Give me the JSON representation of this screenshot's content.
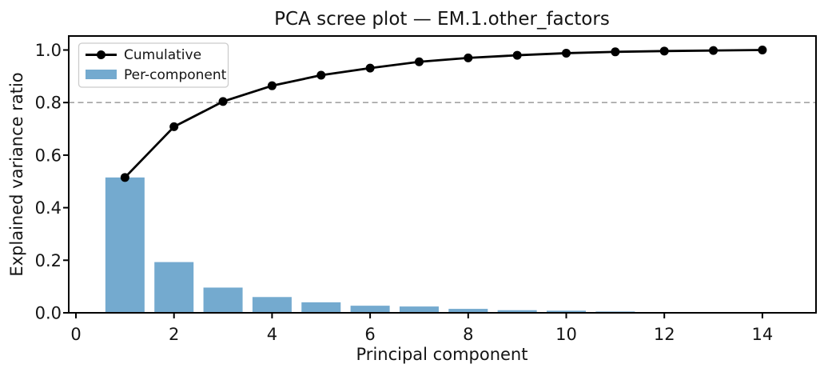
{
  "chart_data": {
    "type": "bar",
    "title": "PCA scree plot — EM.1.other_factors",
    "xlabel": "Principal component",
    "ylabel": "Explained variance ratio",
    "components": [
      1,
      2,
      3,
      4,
      5,
      6,
      7,
      8,
      9,
      10,
      11,
      12,
      13,
      14
    ],
    "series": [
      {
        "name": "Cumulative",
        "type": "line",
        "color": "#000000",
        "values": [
          0.515,
          0.708,
          0.804,
          0.864,
          0.904,
          0.931,
          0.955,
          0.97,
          0.98,
          0.988,
          0.993,
          0.996,
          0.998,
          1.0
        ]
      },
      {
        "name": "Per-component",
        "type": "bar",
        "color": "#74aacf",
        "values": [
          0.515,
          0.193,
          0.096,
          0.06,
          0.04,
          0.027,
          0.024,
          0.015,
          0.01,
          0.008,
          0.005,
          0.003,
          0.002,
          0.002
        ]
      }
    ],
    "threshold_line": {
      "value": 0.8,
      "style": "dashed",
      "color": "#a3a3a3"
    },
    "xticks": [
      0,
      2,
      4,
      6,
      8,
      10,
      12,
      14
    ],
    "yticks": [
      0.0,
      0.2,
      0.4,
      0.6,
      0.8,
      1.0
    ],
    "xlim": [
      -0.2,
      15.1
    ],
    "ylim": [
      0,
      1.053
    ],
    "legend_position": "upper-left",
    "grid": false,
    "axis_color": "#000000",
    "text_color": "#141414",
    "background_color": "#ffffff"
  }
}
